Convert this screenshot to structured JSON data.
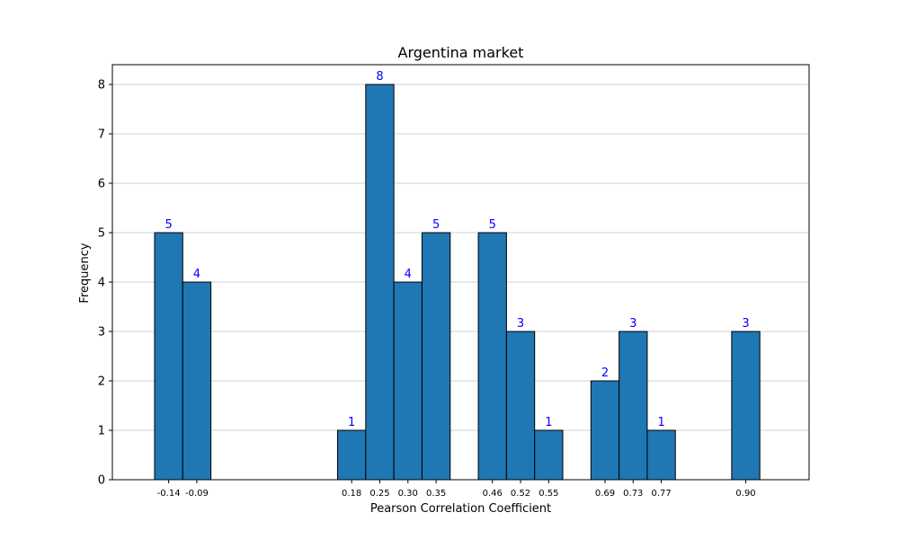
{
  "chart_data": {
    "type": "bar",
    "title": "Argentina market",
    "xlabel": "Pearson Correlation Coefficient",
    "ylabel": "Frequency",
    "xlim": [
      -0.245,
      0.9925
    ],
    "ylim": [
      0,
      8.4
    ],
    "y_ticks": [
      0,
      1,
      2,
      3,
      4,
      5,
      6,
      7,
      8
    ],
    "grid": "y",
    "bin_width": 0.05,
    "bins": [
      {
        "x": -0.145,
        "label": "-0.14",
        "value": 5
      },
      {
        "x": -0.095,
        "label": "-0.09",
        "value": 4
      },
      {
        "x": 0.18,
        "label": "0.18",
        "value": 1
      },
      {
        "x": 0.23,
        "label": "0.25",
        "value": 8
      },
      {
        "x": 0.28,
        "label": "0.30",
        "value": 4
      },
      {
        "x": 0.33,
        "label": "0.35",
        "value": 5
      },
      {
        "x": 0.43,
        "label": "0.46",
        "value": 5
      },
      {
        "x": 0.48,
        "label": "0.52",
        "value": 3
      },
      {
        "x": 0.53,
        "label": "0.55",
        "value": 1
      },
      {
        "x": 0.63,
        "label": "0.69",
        "value": 2
      },
      {
        "x": 0.68,
        "label": "0.73",
        "value": 3
      },
      {
        "x": 0.73,
        "label": "0.77",
        "value": 1
      },
      {
        "x": 0.88,
        "label": "0.90",
        "value": 3
      }
    ],
    "colors": {
      "bar_fill": "#1f77b4",
      "bar_edge": "#000000",
      "bar_label": "#0000ff",
      "grid": "#c0c0c0"
    }
  }
}
